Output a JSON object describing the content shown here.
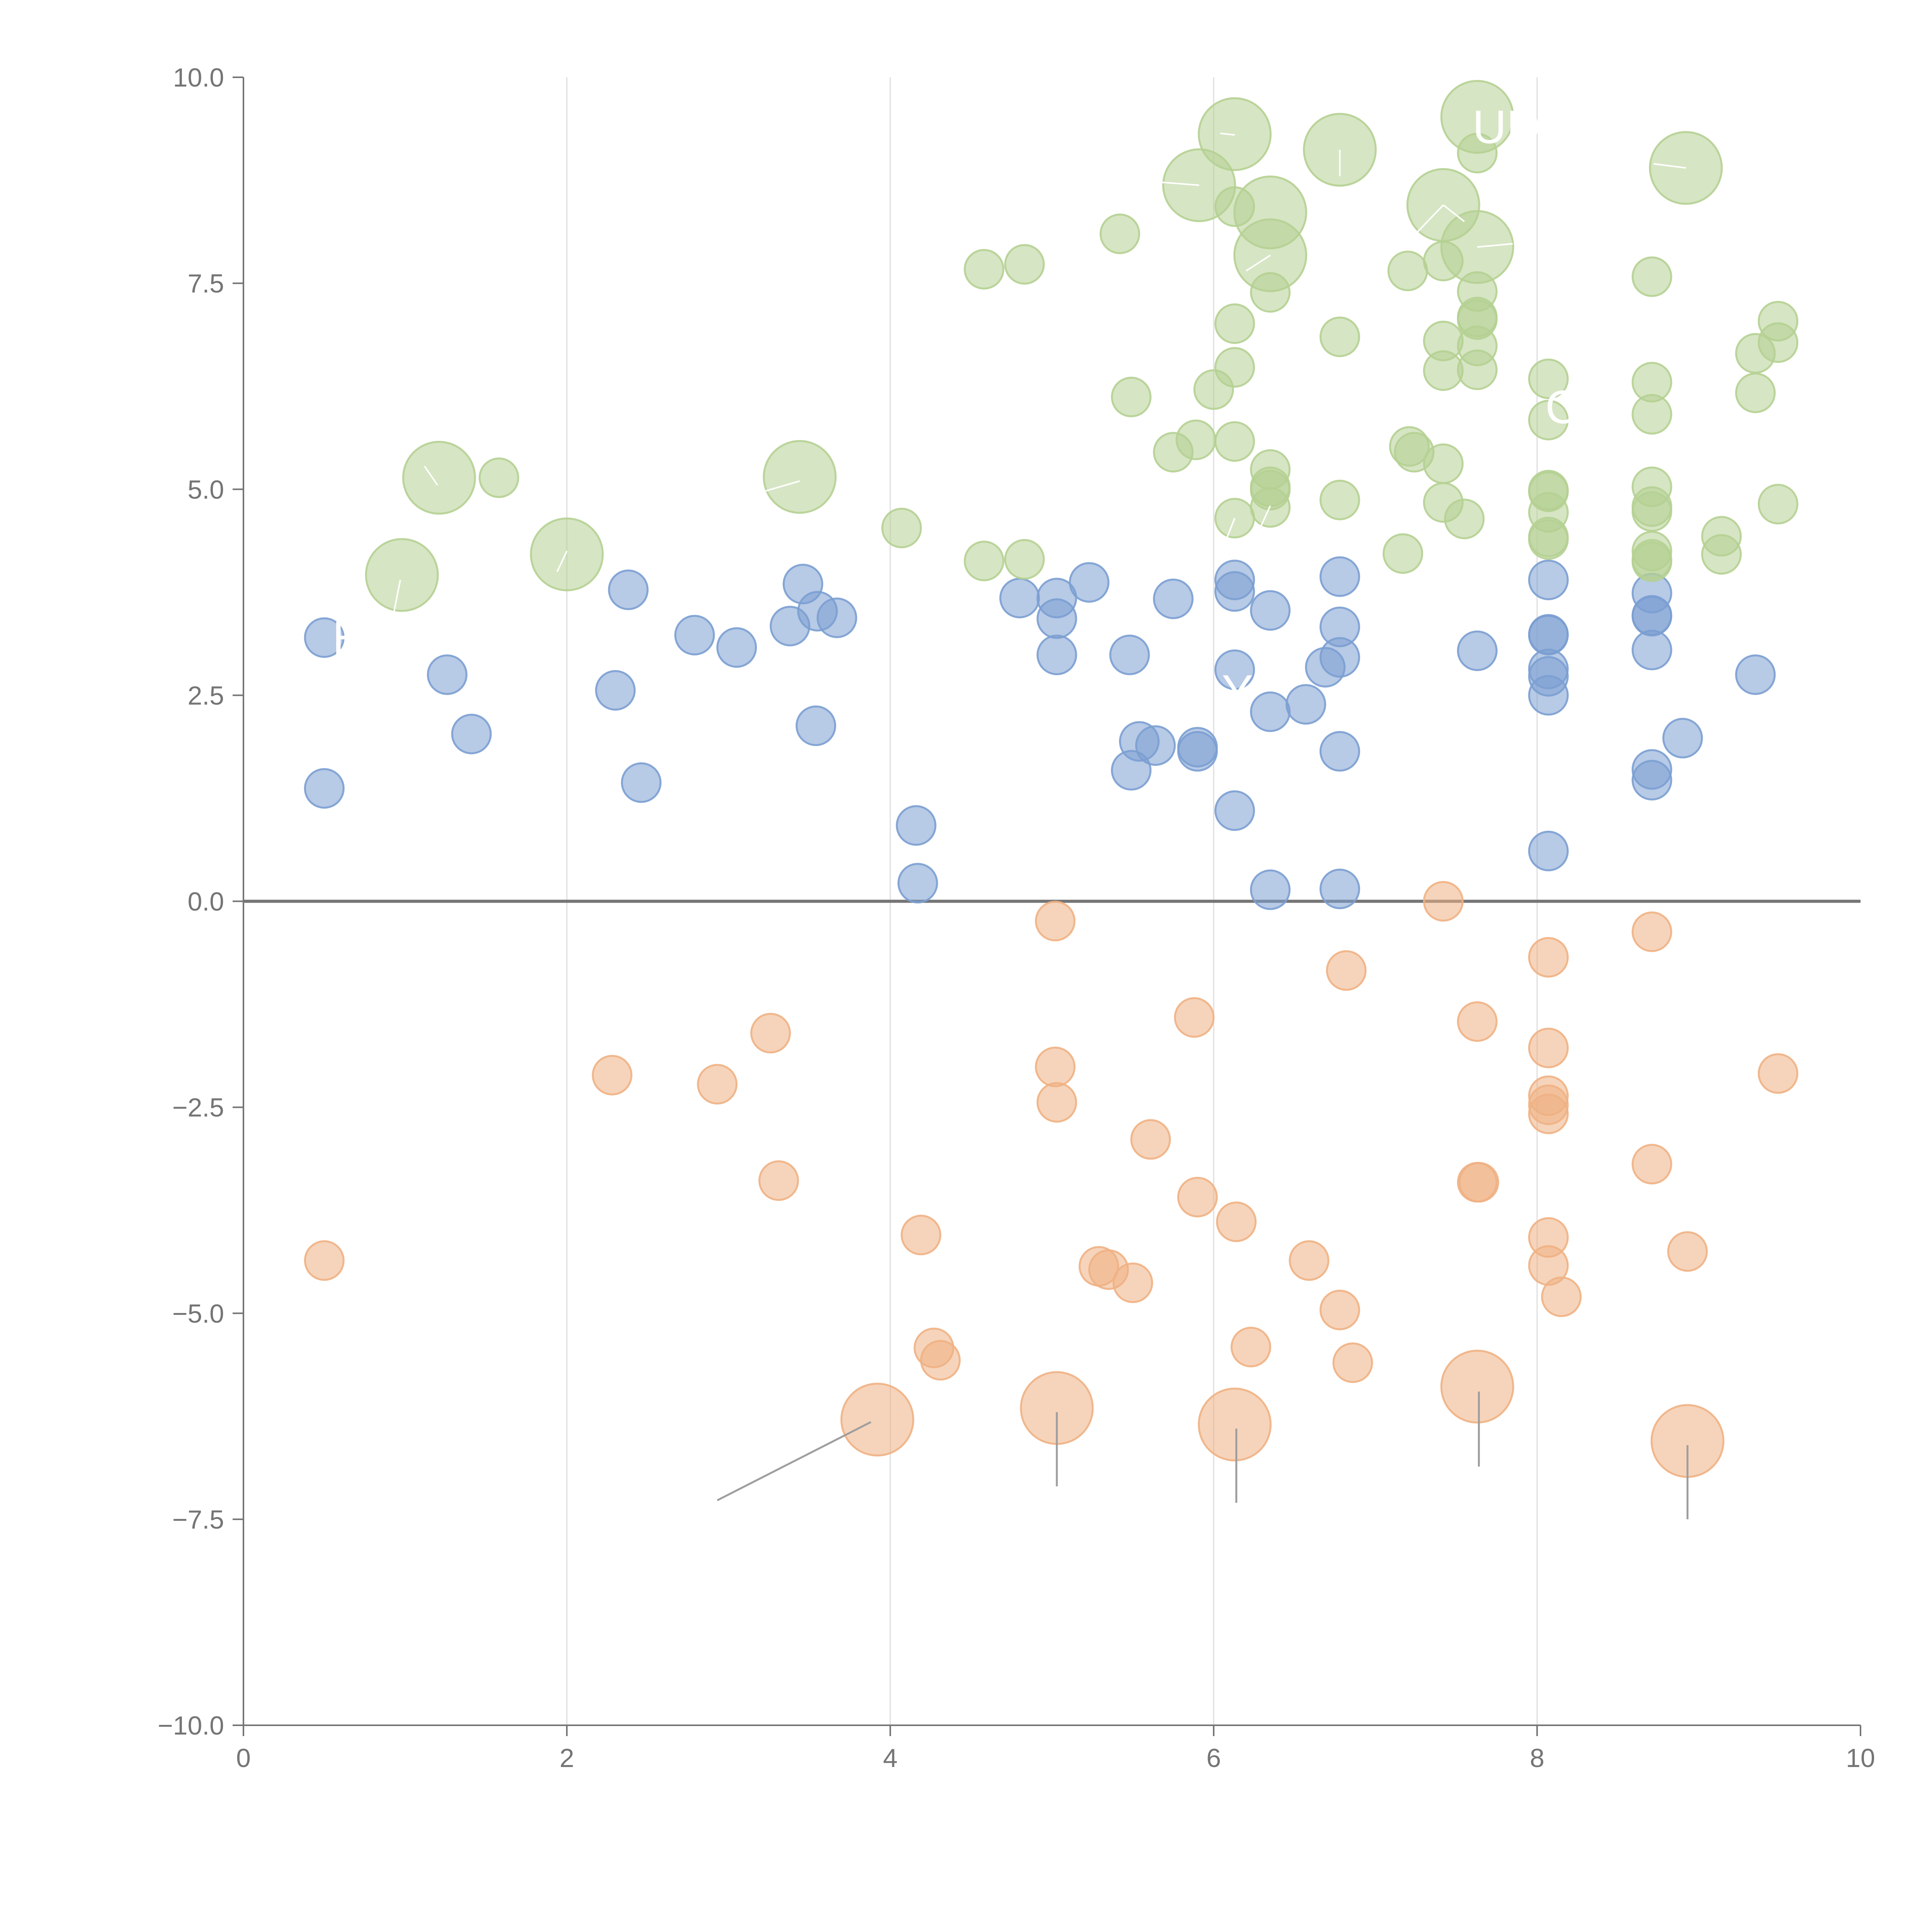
{
  "chart_data": {
    "type": "scatter",
    "title": "",
    "xlabel": "",
    "ylabel": "",
    "xlim": [
      0,
      10
    ],
    "ylim": [
      -10,
      10
    ],
    "grid": "vertical",
    "x_ticks": [
      "0",
      "2",
      "4",
      "6",
      "8",
      "10"
    ],
    "y_ticks": [
      "10.0",
      "7.5",
      "5.0",
      "2.5",
      "0.0",
      "−2.5",
      "−5.0",
      "−7.5",
      "−10.0"
    ],
    "zero_line": 0,
    "series": [
      {
        "name": "blue",
        "color": "#7b9fd1",
        "points": [
          [
            0.5,
            3.2
          ],
          [
            0.5,
            1.37
          ],
          [
            1.26,
            2.75
          ],
          [
            1.41,
            2.03
          ],
          [
            2.3,
            2.56
          ],
          [
            2.38,
            3.78
          ],
          [
            2.46,
            1.44
          ],
          [
            2.79,
            3.23
          ],
          [
            3.05,
            3.08
          ],
          [
            3.38,
            3.34
          ],
          [
            3.46,
            3.85
          ],
          [
            3.54,
            2.13
          ],
          [
            3.55,
            3.52
          ],
          [
            3.67,
            3.44
          ],
          [
            4.16,
            0.92
          ],
          [
            4.17,
            0.22
          ],
          [
            4.8,
            3.68
          ],
          [
            5.03,
            3.68
          ],
          [
            5.03,
            3.43
          ],
          [
            5.03,
            2.99
          ],
          [
            5.23,
            3.87
          ],
          [
            5.48,
            2.99
          ],
          [
            5.49,
            1.59
          ],
          [
            5.54,
            1.94
          ],
          [
            5.64,
            1.89
          ],
          [
            5.75,
            3.67
          ],
          [
            5.9,
            1.82
          ],
          [
            5.9,
            1.87
          ],
          [
            6.13,
            3.9
          ],
          [
            6.13,
            3.76
          ],
          [
            6.13,
            2.81
          ],
          [
            6.13,
            1.1
          ],
          [
            6.35,
            3.53
          ],
          [
            6.35,
            2.3
          ],
          [
            6.35,
            0.14
          ],
          [
            6.57,
            2.39
          ],
          [
            6.69,
            2.84
          ],
          [
            6.78,
            3.94
          ],
          [
            6.78,
            3.33
          ],
          [
            6.78,
            2.96
          ],
          [
            6.78,
            1.82
          ],
          [
            6.78,
            0.15
          ],
          [
            7.63,
            3.04
          ],
          [
            8.07,
            3.9
          ],
          [
            8.07,
            3.24
          ],
          [
            8.07,
            3.23
          ],
          [
            8.07,
            2.82
          ],
          [
            8.07,
            2.73
          ],
          [
            8.07,
            2.5
          ],
          [
            8.07,
            0.61
          ],
          [
            8.71,
            3.74
          ],
          [
            8.71,
            3.47
          ],
          [
            8.71,
            3.46
          ],
          [
            8.71,
            3.05
          ],
          [
            8.71,
            1.6
          ],
          [
            8.71,
            1.47
          ],
          [
            8.9,
            1.98
          ],
          [
            9.35,
            2.75
          ]
        ]
      },
      {
        "name": "green",
        "color": "#b5d092",
        "points": [
          [
            0.98,
            3.96,
            "l"
          ],
          [
            1.21,
            5.14,
            "l"
          ],
          [
            1.58,
            5.14,
            "s"
          ],
          [
            2.0,
            4.21,
            "l"
          ],
          [
            3.44,
            5.15,
            "l"
          ],
          [
            4.07,
            4.53,
            "s"
          ],
          [
            4.58,
            4.13,
            "s"
          ],
          [
            4.58,
            7.67,
            "s"
          ],
          [
            4.83,
            4.15,
            "s"
          ],
          [
            4.83,
            7.73,
            "s"
          ],
          [
            5.42,
            8.1,
            "s"
          ],
          [
            5.49,
            6.12,
            "s"
          ],
          [
            5.75,
            5.45,
            "s"
          ],
          [
            5.89,
            5.6,
            "s"
          ],
          [
            5.91,
            8.69,
            "l"
          ],
          [
            6.0,
            6.21,
            "s"
          ],
          [
            6.13,
            9.31,
            "l"
          ],
          [
            6.13,
            8.43,
            "s"
          ],
          [
            6.13,
            7.01,
            "s"
          ],
          [
            6.13,
            6.48,
            "s"
          ],
          [
            6.13,
            5.58,
            "s"
          ],
          [
            6.13,
            4.65,
            "s"
          ],
          [
            6.35,
            8.36,
            "l"
          ],
          [
            6.35,
            7.84,
            "l"
          ],
          [
            6.35,
            7.39,
            "s"
          ],
          [
            6.35,
            5.24,
            "s"
          ],
          [
            6.35,
            5.03,
            "s"
          ],
          [
            6.35,
            4.99,
            "s"
          ],
          [
            6.35,
            4.78,
            "s"
          ],
          [
            6.78,
            9.12,
            "l"
          ],
          [
            6.78,
            6.85,
            "s"
          ],
          [
            6.78,
            4.87,
            "s"
          ],
          [
            7.17,
            4.22,
            "s"
          ],
          [
            7.2,
            7.65,
            "s"
          ],
          [
            7.21,
            5.52,
            "s"
          ],
          [
            7.24,
            5.45,
            "s"
          ],
          [
            7.42,
            8.45,
            "l"
          ],
          [
            7.42,
            7.77,
            "s"
          ],
          [
            7.42,
            6.8,
            "s"
          ],
          [
            7.42,
            6.44,
            "s"
          ],
          [
            7.42,
            5.31,
            "s"
          ],
          [
            7.42,
            4.84,
            "s"
          ],
          [
            7.55,
            4.64,
            "s"
          ],
          [
            7.63,
            9.52,
            "l"
          ],
          [
            7.63,
            9.08,
            "s"
          ],
          [
            7.63,
            7.94,
            "l"
          ],
          [
            7.63,
            7.4,
            "s"
          ],
          [
            7.63,
            7.09,
            "s"
          ],
          [
            7.63,
            7.06,
            "s"
          ],
          [
            7.63,
            6.74,
            "s"
          ],
          [
            7.63,
            6.45,
            "s"
          ],
          [
            8.07,
            6.34,
            "s"
          ],
          [
            8.07,
            5.84,
            "s"
          ],
          [
            8.07,
            4.99,
            "s"
          ],
          [
            8.07,
            4.97,
            "s"
          ],
          [
            8.07,
            4.72,
            "s"
          ],
          [
            8.07,
            4.42,
            "s"
          ],
          [
            8.07,
            4.39,
            "s"
          ],
          [
            8.71,
            7.58,
            "s"
          ],
          [
            8.71,
            6.3,
            "s"
          ],
          [
            8.71,
            5.91,
            "s"
          ],
          [
            8.71,
            5.03,
            "s"
          ],
          [
            8.71,
            4.79,
            "s"
          ],
          [
            8.71,
            4.73,
            "s"
          ],
          [
            8.71,
            4.25,
            "s"
          ],
          [
            8.71,
            4.15,
            "s"
          ],
          [
            8.71,
            4.12,
            "s"
          ],
          [
            8.92,
            8.9,
            "l"
          ],
          [
            9.14,
            4.43,
            "s"
          ],
          [
            9.14,
            4.21,
            "s"
          ],
          [
            9.35,
            6.65,
            "s"
          ],
          [
            9.35,
            6.17,
            "s"
          ],
          [
            9.49,
            7.04,
            "s"
          ],
          [
            9.49,
            6.78,
            "s"
          ],
          [
            9.49,
            4.82,
            "s"
          ]
        ]
      },
      {
        "name": "orange",
        "color": "#efb184",
        "points": [
          [
            0.5,
            -4.36,
            "s"
          ],
          [
            2.28,
            -2.11,
            "s"
          ],
          [
            2.93,
            -2.22,
            "s"
          ],
          [
            3.26,
            -1.6,
            "s"
          ],
          [
            3.31,
            -3.39,
            "s"
          ],
          [
            3.92,
            -6.29,
            "l"
          ],
          [
            4.19,
            -4.05,
            "s"
          ],
          [
            4.27,
            -5.42,
            "s"
          ],
          [
            4.31,
            -5.57,
            "s"
          ],
          [
            5.02,
            -0.24,
            "s"
          ],
          [
            5.02,
            -2.01,
            "s"
          ],
          [
            5.03,
            -2.44,
            "s"
          ],
          [
            5.03,
            -6.15,
            "l"
          ],
          [
            5.29,
            -4.43,
            "s"
          ],
          [
            5.35,
            -4.47,
            "s"
          ],
          [
            5.5,
            -4.63,
            "s"
          ],
          [
            5.61,
            -2.89,
            "s"
          ],
          [
            5.88,
            -1.41,
            "s"
          ],
          [
            5.9,
            -3.59,
            "s"
          ],
          [
            6.13,
            -6.35,
            "l"
          ],
          [
            6.14,
            -3.89,
            "s"
          ],
          [
            6.23,
            -5.41,
            "s"
          ],
          [
            6.59,
            -4.36,
            "s"
          ],
          [
            6.78,
            -4.96,
            "s"
          ],
          [
            6.82,
            -0.84,
            "s"
          ],
          [
            6.86,
            -5.6,
            "s"
          ],
          [
            7.42,
            0.0,
            "s"
          ],
          [
            7.63,
            -1.46,
            "s"
          ],
          [
            7.63,
            -3.41,
            "s"
          ],
          [
            7.64,
            -3.41,
            "s"
          ],
          [
            7.63,
            -5.89,
            "l"
          ],
          [
            8.07,
            -0.68,
            "s"
          ],
          [
            8.07,
            -1.78,
            "s"
          ],
          [
            8.07,
            -2.36,
            "s"
          ],
          [
            8.07,
            -2.47,
            "s"
          ],
          [
            8.07,
            -2.58,
            "s"
          ],
          [
            8.07,
            -4.08,
            "s"
          ],
          [
            8.07,
            -4.42,
            "s"
          ],
          [
            8.15,
            -4.8,
            "s"
          ],
          [
            8.71,
            -0.37,
            "s"
          ],
          [
            8.71,
            -3.19,
            "s"
          ],
          [
            8.93,
            -4.25,
            "s"
          ],
          [
            8.93,
            -6.55,
            "l"
          ],
          [
            9.49,
            -2.09,
            "s"
          ]
        ]
      }
    ],
    "annotations": [
      {
        "text": "UD",
        "x": 7.6,
        "y": 9.2
      },
      {
        "text": "E",
        "x": 0.55,
        "y": 3.0
      },
      {
        "text": "L",
        "x": 1.32,
        "y": 5.55
      },
      {
        "text": "Y",
        "x": 6.05,
        "y": 2.35
      },
      {
        "text": "C",
        "x": 8.05,
        "y": 5.8
      }
    ],
    "leader_lines": [
      [
        2.93,
        -7.27,
        3.88,
        -6.32
      ],
      [
        5.03,
        -7.1,
        5.03,
        -6.2
      ],
      [
        6.14,
        -7.3,
        6.14,
        -6.4
      ],
      [
        7.64,
        -6.86,
        7.64,
        -5.95
      ],
      [
        8.93,
        -7.5,
        8.93,
        -6.6
      ],
      [
        0.92,
        3.4,
        0.97,
        3.9
      ],
      [
        1.2,
        5.05,
        1.12,
        5.28
      ],
      [
        2.0,
        4.25,
        1.94,
        4.0
      ],
      [
        3.44,
        5.1,
        3.23,
        4.98
      ],
      [
        5.91,
        8.69,
        5.65,
        8.73
      ],
      [
        6.13,
        9.3,
        6.04,
        9.32
      ],
      [
        6.35,
        7.84,
        6.2,
        7.65
      ],
      [
        6.78,
        9.12,
        6.78,
        8.8
      ],
      [
        7.42,
        8.45,
        7.55,
        8.25
      ],
      [
        7.63,
        7.94,
        7.85,
        7.98
      ],
      [
        7.42,
        8.45,
        7.2,
        8.0
      ],
      [
        8.92,
        8.9,
        8.72,
        8.95
      ],
      [
        6.35,
        4.8,
        6.28,
        4.5
      ],
      [
        6.13,
        4.65,
        6.08,
        4.4
      ]
    ]
  }
}
